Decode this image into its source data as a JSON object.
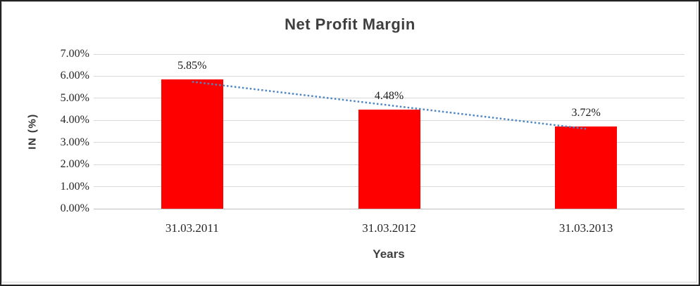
{
  "chart_data": {
    "type": "bar",
    "title": "Net Profit Margin",
    "xlabel": "Years",
    "ylabel": "IN (%)",
    "categories": [
      "31.03.2011",
      "31.03.2012",
      "31.03.2013"
    ],
    "values": [
      5.85,
      4.48,
      3.72
    ],
    "data_labels": [
      "5.85%",
      "4.48%",
      "3.72%"
    ],
    "ylim": [
      0,
      7
    ],
    "ytick_step": 1,
    "ytick_labels": [
      "0.00%",
      "1.00%",
      "2.00%",
      "3.00%",
      "4.00%",
      "5.00%",
      "6.00%",
      "7.00%"
    ],
    "grid": true,
    "legend": false,
    "trendline": {
      "type": "linear",
      "style": "dotted"
    },
    "colors": {
      "bar": "#ff0000",
      "trendline": "#4e86c6",
      "gridline": "#d9d9d9",
      "axis_line": "#c0c0c0",
      "label_text": "#262626",
      "title_text": "#3f3f3f"
    }
  }
}
